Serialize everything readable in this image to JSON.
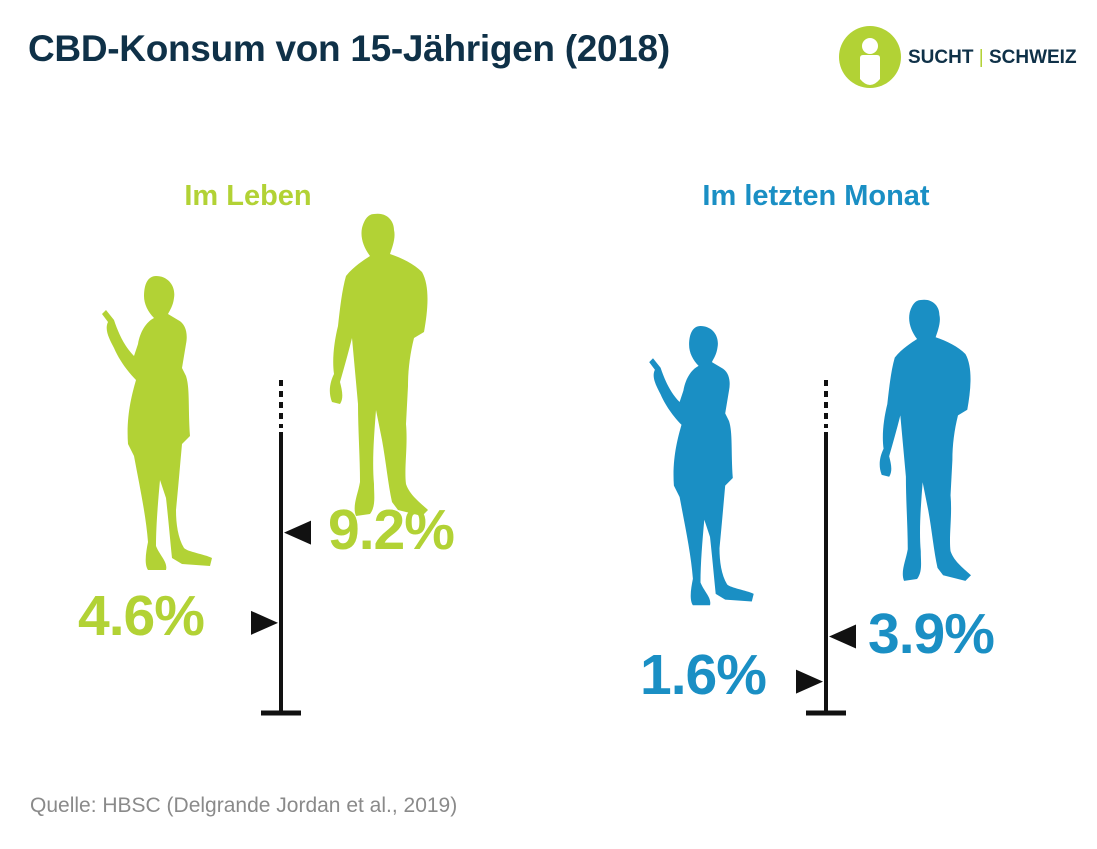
{
  "title": "CBD-Konsum von 15-Jährigen (2018)",
  "logo": {
    "left": "SUCHT",
    "sep": "|",
    "right": "SCHWEIZ"
  },
  "colors": {
    "lifetime": "#b2d235",
    "month": "#1a8fc4",
    "title": "#0f3148",
    "source": "#8a8a8a"
  },
  "source": "Quelle: HBSC (Delgrande Jordan et al., 2019)",
  "chart_data": {
    "type": "bar",
    "title": "CBD-Konsum von 15-Jährigen (2018)",
    "unit": "%",
    "groups": [
      {
        "label": "Im Leben",
        "items": [
          {
            "icon": "female-figure-icon",
            "value": 4.6,
            "label": "4.6%"
          },
          {
            "icon": "male-figure-icon",
            "value": 9.2,
            "label": "9.2%"
          }
        ]
      },
      {
        "label": "Im letzten Monat",
        "items": [
          {
            "icon": "female-figure-icon",
            "value": 1.6,
            "label": "1.6%"
          },
          {
            "icon": "male-figure-icon",
            "value": 3.9,
            "label": "3.9%"
          }
        ]
      }
    ]
  }
}
